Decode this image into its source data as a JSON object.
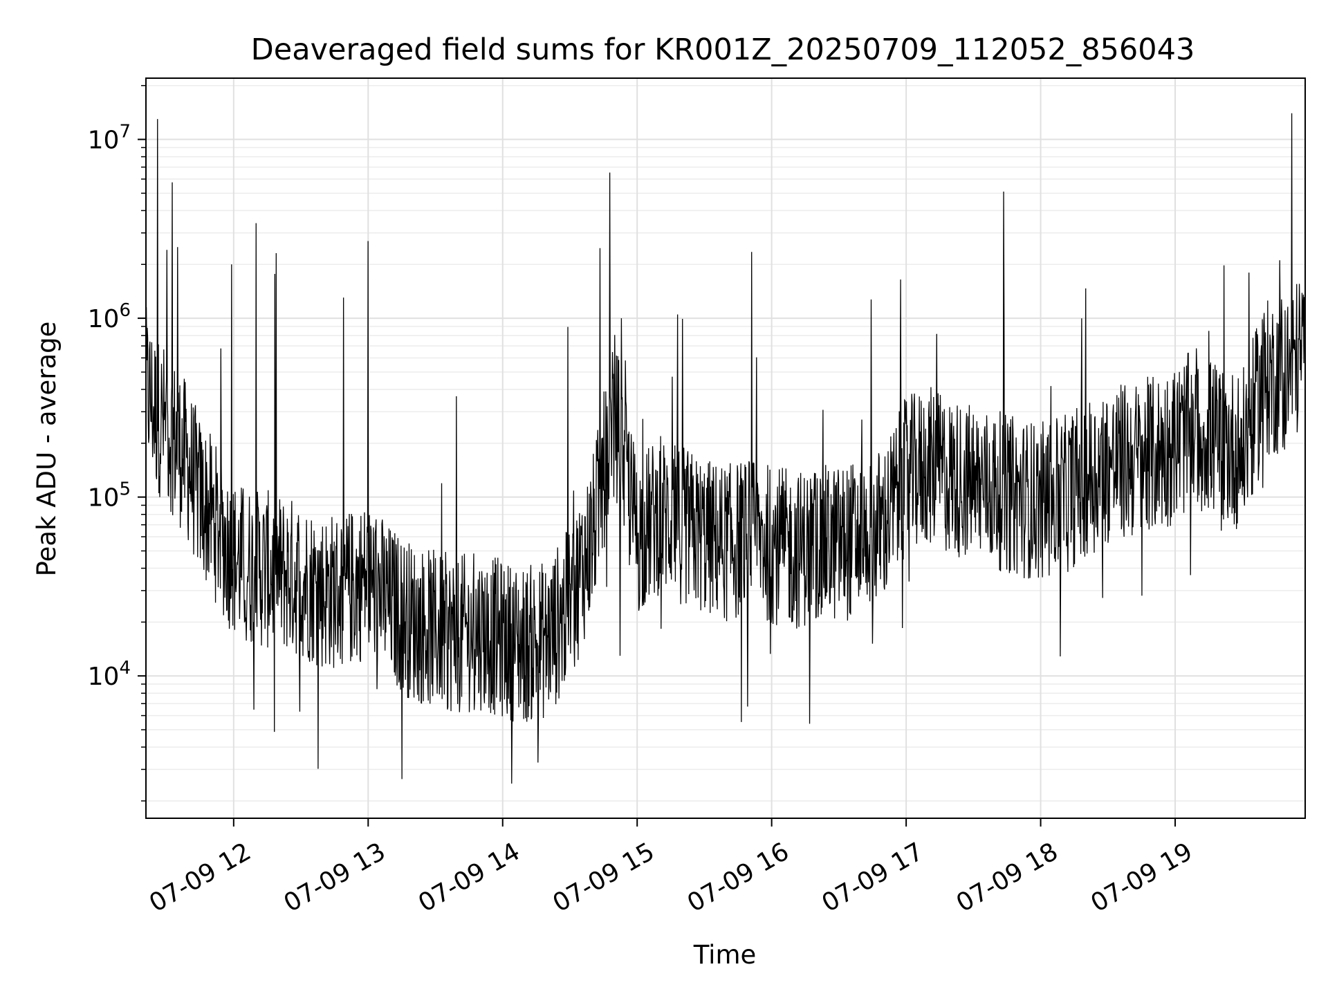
{
  "chart_data": {
    "type": "line",
    "title": "Deaveraged field sums for KR001Z_20250709_112052_856043",
    "xlabel": "Time",
    "ylabel": "Peak ADU - average",
    "yscale": "log",
    "ylim": [
      1600,
      22000000
    ],
    "xlim": [
      "2025-07-09 11:20:52",
      "2025-07-09 19:58:00"
    ],
    "grid": true,
    "line_color": "#000000",
    "x_ticks": [
      {
        "value": "2025-07-09 12:00",
        "label": "07-09 12"
      },
      {
        "value": "2025-07-09 13:00",
        "label": "07-09 13"
      },
      {
        "value": "2025-07-09 14:00",
        "label": "07-09 14"
      },
      {
        "value": "2025-07-09 15:00",
        "label": "07-09 15"
      },
      {
        "value": "2025-07-09 16:00",
        "label": "07-09 16"
      },
      {
        "value": "2025-07-09 17:00",
        "label": "07-09 17"
      },
      {
        "value": "2025-07-09 18:00",
        "label": "07-09 18"
      },
      {
        "value": "2025-07-09 19:00",
        "label": "07-09 19"
      }
    ],
    "y_ticks": [
      {
        "value": 10000,
        "base": "10",
        "exp": "4"
      },
      {
        "value": 100000,
        "base": "10",
        "exp": "5"
      },
      {
        "value": 1000000,
        "base": "10",
        "exp": "6"
      },
      {
        "value": 10000000,
        "base": "10",
        "exp": "7"
      }
    ],
    "series": [
      {
        "x": [
          "2025-07-09 11:20",
          "2025-07-09 11:25",
          "2025-07-09 11:30",
          "2025-07-09 11:35",
          "2025-07-09 11:40",
          "2025-07-09 11:45",
          "2025-07-09 11:50",
          "2025-07-09 11:55",
          "2025-07-09 12:00",
          "2025-07-09 12:10",
          "2025-07-09 12:20",
          "2025-07-09 12:30",
          "2025-07-09 12:40",
          "2025-07-09 12:50",
          "2025-07-09 13:00",
          "2025-07-09 13:10",
          "2025-07-09 13:20",
          "2025-07-09 13:30",
          "2025-07-09 13:40",
          "2025-07-09 13:50",
          "2025-07-09 14:00",
          "2025-07-09 14:10",
          "2025-07-09 14:20",
          "2025-07-09 14:30",
          "2025-07-09 14:40",
          "2025-07-09 14:50",
          "2025-07-09 15:00",
          "2025-07-09 15:10",
          "2025-07-09 15:20",
          "2025-07-09 15:30",
          "2025-07-09 15:40",
          "2025-07-09 15:50",
          "2025-07-09 16:00",
          "2025-07-09 16:10",
          "2025-07-09 16:20",
          "2025-07-09 16:30",
          "2025-07-09 16:40",
          "2025-07-09 16:50",
          "2025-07-09 17:00",
          "2025-07-09 17:10",
          "2025-07-09 17:20",
          "2025-07-09 17:30",
          "2025-07-09 17:40",
          "2025-07-09 17:50",
          "2025-07-09 18:00",
          "2025-07-09 18:10",
          "2025-07-09 18:20",
          "2025-07-09 18:30",
          "2025-07-09 18:40",
          "2025-07-09 18:50",
          "2025-07-09 19:00",
          "2025-07-09 19:10",
          "2025-07-09 19:20",
          "2025-07-09 19:30",
          "2025-07-09 19:40",
          "2025-07-09 19:50",
          "2025-07-09 19:58"
        ],
        "y": [
          450000,
          300000,
          250000,
          200000,
          150000,
          100000,
          80000,
          60000,
          45000,
          40000,
          38000,
          35000,
          30000,
          30000,
          35000,
          25000,
          20000,
          18000,
          17000,
          18000,
          16000,
          15000,
          16000,
          25000,
          60000,
          300000,
          60000,
          80000,
          70000,
          60000,
          55000,
          60000,
          55000,
          50000,
          55000,
          55000,
          60000,
          70000,
          130000,
          150000,
          130000,
          120000,
          110000,
          100000,
          95000,
          100000,
          130000,
          150000,
          160000,
          170000,
          200000,
          250000,
          200000,
          180000,
          450000,
          500000,
          700000
        ]
      }
    ],
    "spikes": [
      {
        "x": "2025-07-09 11:26",
        "y": 13000000
      },
      {
        "x": "2025-07-09 11:35",
        "y": 2500000
      },
      {
        "x": "2025-07-09 11:59",
        "y": 2000000
      },
      {
        "x": "2025-07-09 12:10",
        "y": 3400000
      },
      {
        "x": "2025-07-09 13:00",
        "y": 2700000
      },
      {
        "x": "2025-07-09 14:04",
        "y": 2500
      },
      {
        "x": "2025-07-09 14:53",
        "y": 1000000
      },
      {
        "x": "2025-07-09 15:18",
        "y": 1050000
      },
      {
        "x": "2025-07-09 16:17",
        "y": 5400
      },
      {
        "x": "2025-07-09 19:15",
        "y": 850000
      },
      {
        "x": "2025-07-09 19:33",
        "y": 1800000
      },
      {
        "x": "2025-07-09 19:52",
        "y": 14000000
      }
    ]
  }
}
